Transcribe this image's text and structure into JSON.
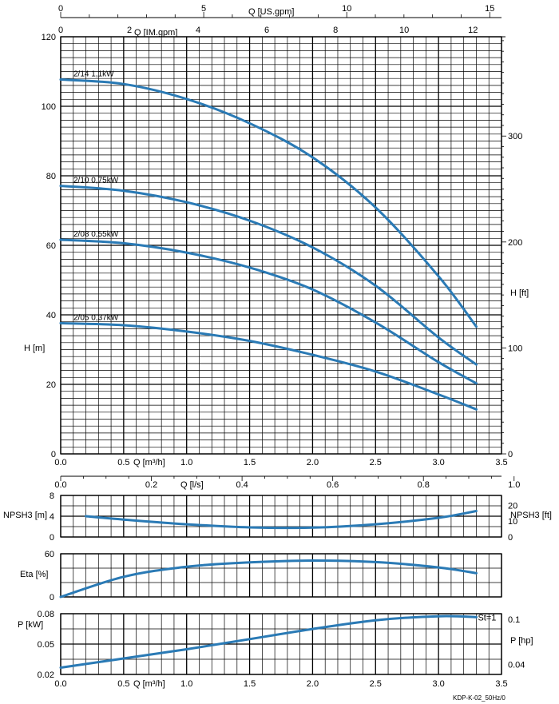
{
  "chart_data": {
    "type": "line",
    "footnote": "KDP-K-02_50Hz/0",
    "x_axis": {
      "label": "Q [m³/h]",
      "min": 0,
      "max": 3.5,
      "ticks": [
        "0.0",
        "0.5",
        "1.0",
        "1.5",
        "2.0",
        "2.5",
        "3.0",
        "3.5"
      ]
    },
    "top_axes": {
      "us_gpm": {
        "label": "Q [US.gpm]",
        "ticks": [
          "0",
          "5",
          "10",
          "15"
        ]
      },
      "im_gpm": {
        "label": "Q [IM.gpm]",
        "ticks": [
          "0",
          "2",
          "4",
          "6",
          "8",
          "10",
          "12"
        ]
      },
      "ls": {
        "label": "Q [l/s]",
        "ticks": [
          "0.0",
          "0.2",
          "0.4",
          "0.6",
          "0.8",
          "1.0"
        ]
      }
    },
    "head_chart": {
      "ylabel": "H [m]",
      "ylim": [
        0,
        120
      ],
      "yticks": [
        "0",
        "20",
        "40",
        "60",
        "80",
        "100",
        "120"
      ],
      "ylabel_right": "H [ft]",
      "yticks_right": [
        "0",
        "100",
        "200",
        "300"
      ],
      "series": [
        {
          "name": "2/14  1,1kW",
          "x": [
            0,
            0.5,
            1.0,
            1.5,
            2.0,
            2.5,
            3.0,
            3.3
          ],
          "y": [
            107.7,
            106.4,
            102.1,
            95.1,
            85.3,
            70.9,
            51.1,
            36.6
          ]
        },
        {
          "name": "2/10  0,75kW",
          "x": [
            0,
            0.5,
            1.0,
            1.5,
            2.0,
            2.5,
            3.0,
            3.3
          ],
          "y": [
            77.1,
            75.7,
            72.4,
            67.1,
            59.4,
            48.4,
            33.5,
            25.7
          ]
        },
        {
          "name": "2/08  0,55kW",
          "x": [
            0,
            0.5,
            1.0,
            1.5,
            2.0,
            2.5,
            3.0,
            3.3
          ],
          "y": [
            61.6,
            60.6,
            57.9,
            53.6,
            47.3,
            37.8,
            26.4,
            20.3
          ]
        },
        {
          "name": "2/05  0,37kW",
          "x": [
            0,
            0.5,
            1.0,
            1.5,
            2.0,
            2.5,
            3.0,
            3.3
          ],
          "y": [
            37.6,
            37.0,
            35.2,
            32.5,
            28.5,
            23.7,
            17.1,
            12.8
          ]
        }
      ]
    },
    "npsh_chart": {
      "ylabel": "NPSH3 [m]",
      "ylim": [
        0,
        8
      ],
      "yticks": [
        "0",
        "4",
        "8"
      ],
      "ylabel_right": "NPSH3 [ft]",
      "yticks_right": [
        "0",
        "10",
        "20"
      ],
      "series": [
        {
          "name": "NPSH3",
          "x": [
            0.2,
            0.5,
            1.0,
            1.5,
            2.0,
            2.5,
            3.0,
            3.3
          ],
          "y": [
            4.0,
            3.35,
            2.45,
            1.85,
            1.8,
            2.45,
            3.7,
            5.0
          ]
        }
      ]
    },
    "eta_chart": {
      "ylabel": "Eta [%]",
      "ylim": [
        0,
        60
      ],
      "yticks": [
        "0",
        "60"
      ],
      "series": [
        {
          "name": "Eta",
          "x": [
            0,
            0.5,
            1.0,
            1.5,
            2.0,
            2.5,
            3.0,
            3.3
          ],
          "y": [
            0,
            28,
            42,
            48,
            50.5,
            48.5,
            41,
            33
          ]
        }
      ]
    },
    "power_chart": {
      "ylabel": "P [kW]",
      "ylim": [
        0.02,
        0.08
      ],
      "yticks": [
        "0.02",
        "0.05",
        "0.08"
      ],
      "ylabel_right": "P [hp]",
      "yticks_right": [
        "0.04",
        "0.1"
      ],
      "series": [
        {
          "name": "St=1",
          "x": [
            0,
            0.5,
            1.0,
            1.5,
            2.0,
            2.5,
            3.0,
            3.3
          ],
          "y": [
            0.0267,
            0.0358,
            0.0449,
            0.0549,
            0.0649,
            0.0735,
            0.0775,
            0.0766
          ]
        }
      ]
    }
  }
}
